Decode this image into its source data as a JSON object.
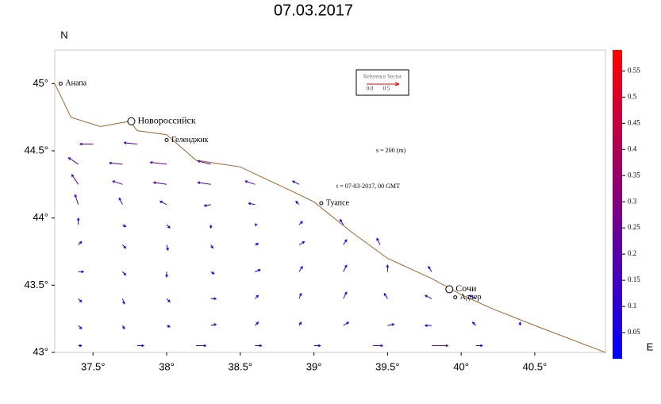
{
  "chart_data": {
    "type": "quiver",
    "title": "07.03.2017",
    "ylabel": "N",
    "xlabel": "E",
    "xlim": [
      37.24,
      40.98
    ],
    "ylim": [
      43,
      45.25
    ],
    "xticks": [
      {
        "value": 37.5,
        "label": "37.5°"
      },
      {
        "value": 38,
        "label": "38°"
      },
      {
        "value": 38.5,
        "label": "38.5°"
      },
      {
        "value": 39,
        "label": "39°"
      },
      {
        "value": 39.5,
        "label": "39.5°"
      },
      {
        "value": 40,
        "label": "40°"
      },
      {
        "value": 40.5,
        "label": "40.5°"
      }
    ],
    "yticks": [
      {
        "value": 43,
        "label": "43°"
      },
      {
        "value": 43.5,
        "label": "43.5°"
      },
      {
        "value": 44,
        "label": "44°"
      },
      {
        "value": 44.5,
        "label": "44.5°"
      },
      {
        "value": 45,
        "label": "45°"
      }
    ],
    "coastline": {
      "color": "#a0642d",
      "lon": [
        37.24,
        37.35,
        37.55,
        37.75,
        37.8,
        38.0,
        38.2,
        38.5,
        38.85,
        39.0,
        39.25,
        39.5,
        39.8,
        40.0,
        40.2,
        40.5,
        40.98
      ],
      "lat": [
        45.0,
        44.75,
        44.68,
        44.72,
        44.65,
        44.62,
        44.43,
        44.38,
        44.2,
        44.12,
        43.9,
        43.7,
        43.55,
        43.43,
        43.33,
        43.2,
        43.0
      ]
    },
    "cities": {
      "names": [
        "Анапа",
        "Новороссийск",
        "Геленджик",
        "Туапсе",
        "Сочи",
        "Адлер"
      ],
      "lon": [
        37.28,
        37.76,
        38.0,
        39.05,
        39.92,
        39.96
      ],
      "lat": [
        45.0,
        44.72,
        44.58,
        44.11,
        43.47,
        43.41
      ],
      "major": [
        false,
        true,
        false,
        false,
        true,
        false
      ]
    },
    "reference_vector": {
      "title": "Reference Vector",
      "labels": [
        "0.0",
        "0.5"
      ]
    },
    "annotations": [
      "s = 200 (m)",
      "t = 07-03-2017, 00 GMT"
    ],
    "colorbar": {
      "colors": [
        "#0000ff",
        "#ff0000"
      ],
      "lim": [
        0,
        0.59
      ],
      "ticks": [
        0.05,
        0.1,
        0.15,
        0.2,
        0.25,
        0.3,
        0.35,
        0.4,
        0.45,
        0.5,
        0.55
      ]
    },
    "vectors": {
      "lon": [
        37.5,
        37.8,
        37.4,
        37.7,
        38.0,
        38.3,
        37.4,
        37.7,
        38.0,
        38.3,
        38.6,
        38.9,
        37.4,
        37.7,
        38.0,
        38.3,
        38.6,
        38.9,
        37.4,
        37.7,
        38.0,
        38.3,
        38.6,
        38.9,
        39.2,
        37.4,
        37.7,
        38.0,
        38.3,
        38.6,
        38.9,
        39.2,
        39.45,
        37.4,
        37.7,
        38.0,
        38.3,
        38.6,
        38.9,
        39.2,
        39.5,
        39.8,
        37.4,
        37.7,
        38.0,
        38.3,
        38.6,
        38.9,
        39.2,
        39.5,
        39.8,
        40.1,
        37.4,
        37.7,
        38.0,
        38.3,
        38.6,
        38.9,
        39.2,
        39.5,
        39.8,
        40.1,
        40.4,
        37.4,
        37.8,
        38.2,
        38.6,
        39.0,
        39.4,
        39.8,
        40.1
      ],
      "lat": [
        44.55,
        44.55,
        44.4,
        44.4,
        44.4,
        44.4,
        44.25,
        44.25,
        44.25,
        44.25,
        44.25,
        44.25,
        44.1,
        44.1,
        44.1,
        44.1,
        44.1,
        44.1,
        43.95,
        43.95,
        43.95,
        43.95,
        43.95,
        43.95,
        43.95,
        43.8,
        43.8,
        43.8,
        43.8,
        43.8,
        43.8,
        43.8,
        43.8,
        43.6,
        43.6,
        43.6,
        43.6,
        43.6,
        43.6,
        43.6,
        43.6,
        43.6,
        43.4,
        43.4,
        43.4,
        43.4,
        43.4,
        43.4,
        43.4,
        43.4,
        43.4,
        43.4,
        43.2,
        43.2,
        43.2,
        43.2,
        43.2,
        43.2,
        43.2,
        43.2,
        43.2,
        43.2,
        43.2,
        43.05,
        43.05,
        43.05,
        43.05,
        43.05,
        43.05,
        43.05,
        43.05
      ],
      "u": [
        -0.2,
        -0.2,
        -0.15,
        -0.2,
        -0.25,
        -0.2,
        -0.1,
        -0.15,
        -0.2,
        -0.2,
        -0.15,
        -0.1,
        -0.05,
        -0.05,
        -0.1,
        -0.1,
        -0.1,
        -0.05,
        0,
        0.05,
        0.05,
        0,
        0.03,
        0.05,
        -0.05,
        0.05,
        0.05,
        0.02,
        0.03,
        0.05,
        0.08,
        0.05,
        -0.05,
        0.08,
        0.05,
        0,
        0.05,
        0.08,
        0.05,
        0.05,
        0,
        -0.05,
        0.05,
        0.03,
        0.05,
        0.08,
        0.05,
        0.03,
        0.05,
        -0.05,
        -0.1,
        -0.1,
        0.05,
        0.03,
        0.05,
        0.08,
        0.05,
        0.03,
        0.08,
        0.1,
        -0.1,
        -0.05,
        0,
        0.05,
        0.1,
        0.15,
        0.1,
        0.1,
        0.15,
        0.25,
        0.1
      ],
      "v": [
        0,
        0.02,
        0.1,
        0.02,
        0.03,
        0.05,
        0.15,
        0.05,
        0.03,
        0.03,
        0.05,
        0.05,
        0.15,
        0.1,
        0.05,
        -0.02,
        0.02,
        0.05,
        0.1,
        -0.03,
        -0.05,
        -0.05,
        0,
        0.05,
        0.08,
        0.05,
        -0.05,
        -0.08,
        -0.05,
        0.02,
        0.05,
        0.08,
        0.1,
        0,
        -0.05,
        -0.08,
        -0.03,
        0.03,
        0.08,
        0.1,
        0.1,
        0.08,
        -0.05,
        -0.08,
        -0.05,
        0,
        0.05,
        0.08,
        0.1,
        0.08,
        0.05,
        0.05,
        -0.05,
        -0.05,
        -0.02,
        0.02,
        0.05,
        0.05,
        0.05,
        0.02,
        0,
        0.05,
        0.05,
        0,
        0,
        0,
        0,
        0,
        0,
        0,
        0
      ]
    }
  }
}
